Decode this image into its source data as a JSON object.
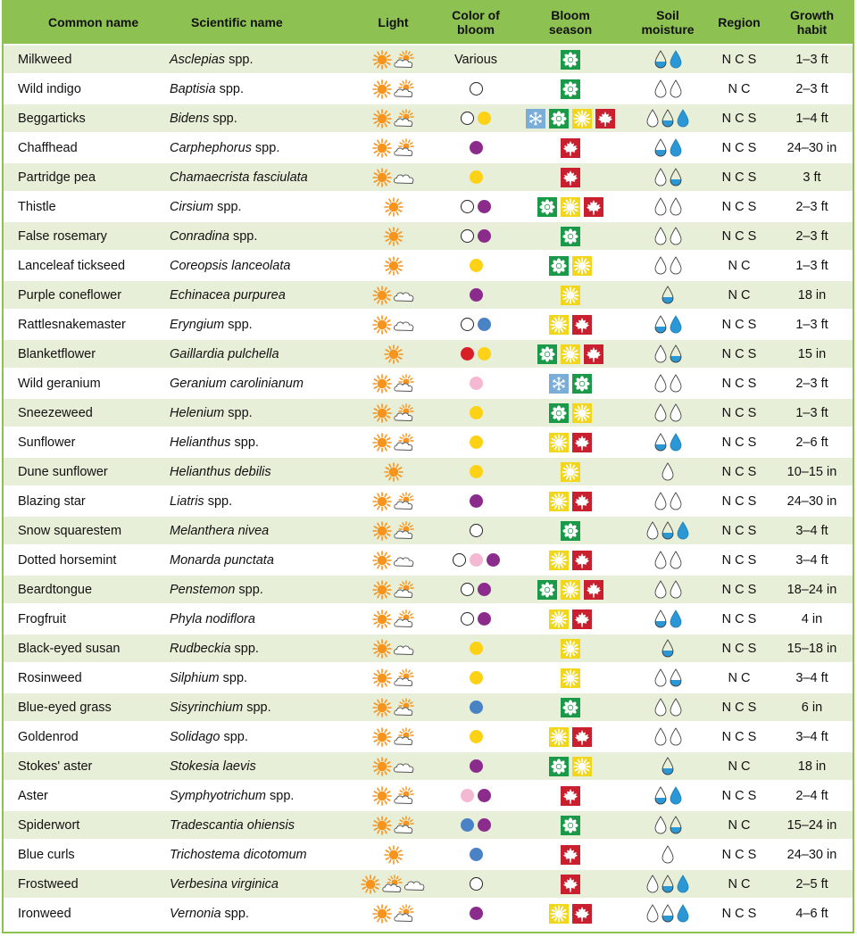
{
  "header": {
    "common": "Common name",
    "sci": "Scientific name",
    "light": "Light",
    "color": [
      "Color of",
      "bloom"
    ],
    "season": [
      "Bloom",
      "season"
    ],
    "moisture": [
      "Soil",
      "moisture"
    ],
    "region": "Region",
    "growth": [
      "Growth",
      "habit"
    ]
  },
  "colors": {
    "header_bg": "#8dc152",
    "alt_row": "#e7efd8",
    "sun": "#f7941d",
    "spring": "#1a9a48",
    "summer": "#f2d61c",
    "fall": "#c8202f",
    "winter": "#7aaed8",
    "purple": "#8b2b8c",
    "yellow": "#fcd116",
    "blue": "#4a82c6",
    "pink": "#f4b8d2",
    "red": "#d81f26",
    "water": "#2b97d4"
  },
  "rows": [
    {
      "common": "Milkweed",
      "sci": "Asclepias",
      "spp": " spp.",
      "light": "sun-partshade",
      "bloom": [
        "Various"
      ],
      "season": [
        "spring"
      ],
      "moisture": [
        1,
        2
      ],
      "region": "N C S",
      "growth": "1–3 ft"
    },
    {
      "common": "Wild indigo",
      "sci": "Baptisia",
      "spp": " spp.",
      "light": "sun-partshade",
      "bloom": [
        "white"
      ],
      "season": [
        "spring"
      ],
      "moisture": [
        0,
        0
      ],
      "region": "N C",
      "growth": "2–3 ft"
    },
    {
      "common": "Beggarticks",
      "sci": "Bidens",
      "spp": " spp.",
      "light": "sun-partshade",
      "bloom": [
        "white",
        "yellow"
      ],
      "season": [
        "winter",
        "spring",
        "summer",
        "fall"
      ],
      "moisture": [
        0,
        1,
        2
      ],
      "region": "N C S",
      "growth": "1–4 ft"
    },
    {
      "common": "Chaffhead",
      "sci": "Carphephorus",
      "spp": " spp.",
      "light": "sun-partshade",
      "bloom": [
        "purple"
      ],
      "season": [
        "fall"
      ],
      "moisture": [
        1,
        2
      ],
      "region": "N C S",
      "growth": "24–30 in"
    },
    {
      "common": "Partridge pea",
      "sci": "Chamaecrista fasciulata",
      "spp": "",
      "light": "sun-shade",
      "bloom": [
        "yellow"
      ],
      "season": [
        "fall"
      ],
      "moisture": [
        0,
        1
      ],
      "region": "N C S",
      "growth": "3 ft"
    },
    {
      "common": "Thistle",
      "sci": "Cirsium",
      "spp": " spp.",
      "light": "sun",
      "bloom": [
        "white",
        "purple"
      ],
      "season": [
        "spring",
        "summer",
        "fall"
      ],
      "moisture": [
        0,
        0
      ],
      "region": "N C S",
      "growth": "2–3 ft"
    },
    {
      "common": "False rosemary",
      "sci": "Conradina",
      "spp": " spp.",
      "light": "sun",
      "bloom": [
        "white",
        "purple"
      ],
      "season": [
        "spring"
      ],
      "moisture": [
        0,
        0
      ],
      "region": "N C S",
      "growth": "2–3 ft"
    },
    {
      "common": "Lanceleaf tickseed",
      "sci": "Coreopsis lanceolata",
      "spp": "",
      "light": "sun",
      "bloom": [
        "yellow"
      ],
      "season": [
        "spring",
        "summer"
      ],
      "moisture": [
        0,
        0
      ],
      "region": "N C",
      "growth": "1–3 ft"
    },
    {
      "common": "Purple coneflower",
      "sci": "Echinacea purpurea",
      "spp": "",
      "light": "sun-shade",
      "bloom": [
        "purple"
      ],
      "season": [
        "summer"
      ],
      "moisture": [
        1
      ],
      "region": "N C",
      "growth": "18 in"
    },
    {
      "common": "Rattlesnakemaster",
      "sci": "Eryngium",
      "spp": " spp.",
      "light": "sun-shade",
      "bloom": [
        "white",
        "blue"
      ],
      "season": [
        "summer",
        "fall"
      ],
      "moisture": [
        1,
        2
      ],
      "region": "N C S",
      "growth": "1–3 ft"
    },
    {
      "common": "Blanketflower",
      "sci": "Gaillardia pulchella",
      "spp": "",
      "light": "sun",
      "bloom": [
        "red",
        "yellow"
      ],
      "season": [
        "spring",
        "summer",
        "fall"
      ],
      "moisture": [
        0,
        1
      ],
      "region": "N C S",
      "growth": "15 in"
    },
    {
      "common": "Wild geranium",
      "sci": "Geranium carolinianum",
      "spp": "",
      "light": "sun-partshade",
      "bloom": [
        "pink"
      ],
      "season": [
        "winter",
        "spring"
      ],
      "moisture": [
        0,
        0
      ],
      "region": "N C S",
      "growth": "2–3 ft"
    },
    {
      "common": "Sneezeweed",
      "sci": "Helenium",
      "spp": " spp.",
      "light": "sun-partshade",
      "bloom": [
        "yellow"
      ],
      "season": [
        "spring",
        "summer"
      ],
      "moisture": [
        0,
        0
      ],
      "region": "N C S",
      "growth": "1–3 ft"
    },
    {
      "common": "Sunflower",
      "sci": "Helianthus",
      "spp": " spp.",
      "light": "sun-partshade",
      "bloom": [
        "yellow"
      ],
      "season": [
        "summer",
        "fall"
      ],
      "moisture": [
        1,
        2
      ],
      "region": "N C S",
      "growth": "2–6 ft"
    },
    {
      "common": "Dune sunflower",
      "sci": "Helianthus debilis",
      "spp": "",
      "light": "sun",
      "bloom": [
        "yellow"
      ],
      "season": [
        "summer"
      ],
      "moisture": [
        0
      ],
      "region": "N C S",
      "growth": "10–15 in"
    },
    {
      "common": "Blazing star",
      "sci": "Liatris",
      "spp": " spp.",
      "light": "sun-partshade",
      "bloom": [
        "purple"
      ],
      "season": [
        "summer",
        "fall"
      ],
      "moisture": [
        0,
        0
      ],
      "region": "N C S",
      "growth": "24–30 in"
    },
    {
      "common": "Snow squarestem",
      "sci": "Melanthera nivea",
      "spp": "",
      "light": "sun-partshade",
      "bloom": [
        "white"
      ],
      "season": [
        "spring"
      ],
      "moisture": [
        0,
        1,
        2
      ],
      "region": "N C S",
      "growth": "3–4 ft"
    },
    {
      "common": "Dotted horsemint",
      "sci": "Monarda punctata",
      "spp": "",
      "light": "sun-shade",
      "bloom": [
        "white",
        "pink",
        "purple"
      ],
      "season": [
        "summer",
        "fall"
      ],
      "moisture": [
        0,
        0
      ],
      "region": "N C S",
      "growth": "3–4 ft"
    },
    {
      "common": "Beardtongue",
      "sci": "Penstemon",
      "spp": " spp.",
      "light": "sun-partshade",
      "bloom": [
        "white",
        "purple"
      ],
      "season": [
        "spring",
        "summer",
        "fall"
      ],
      "moisture": [
        0,
        0
      ],
      "region": "N C S",
      "growth": "18–24 in"
    },
    {
      "common": "Frogfruit",
      "sci": "Phyla nodiflora",
      "spp": "",
      "light": "sun-partshade",
      "bloom": [
        "white",
        "purple"
      ],
      "season": [
        "summer",
        "fall"
      ],
      "moisture": [
        1,
        2
      ],
      "region": "N C S",
      "growth": "4 in"
    },
    {
      "common": "Black-eyed susan",
      "sci": "Rudbeckia",
      "spp": " spp.",
      "light": "sun-shade",
      "bloom": [
        "yellow"
      ],
      "season": [
        "summer"
      ],
      "moisture": [
        1
      ],
      "region": "N C S",
      "growth": "15–18 in"
    },
    {
      "common": "Rosinweed",
      "sci": "Silphium",
      "spp": " spp.",
      "light": "sun-partshade",
      "bloom": [
        "yellow"
      ],
      "season": [
        "summer"
      ],
      "moisture": [
        0,
        1
      ],
      "region": "N C",
      "growth": "3–4 ft"
    },
    {
      "common": "Blue-eyed grass",
      "sci": "Sisyrinchium",
      "spp": " spp.",
      "light": "sun-partshade",
      "bloom": [
        "blue"
      ],
      "season": [
        "spring"
      ],
      "moisture": [
        0,
        0
      ],
      "region": "N C S",
      "growth": "6 in"
    },
    {
      "common": "Goldenrod",
      "sci": "Solidago",
      "spp": " spp.",
      "light": "sun-partshade",
      "bloom": [
        "yellow"
      ],
      "season": [
        "summer",
        "fall"
      ],
      "moisture": [
        0,
        0
      ],
      "region": "N C S",
      "growth": "3–4 ft"
    },
    {
      "common": "Stokes' aster",
      "sci": "Stokesia laevis",
      "spp": "",
      "light": "sun-shade",
      "bloom": [
        "purple"
      ],
      "season": [
        "spring",
        "summer"
      ],
      "moisture": [
        1
      ],
      "region": "N C",
      "growth": "18 in"
    },
    {
      "common": "Aster",
      "sci": "Symphyotrichum",
      "spp": " spp.",
      "light": "sun-partshade",
      "bloom": [
        "pink",
        "purple"
      ],
      "season": [
        "fall"
      ],
      "moisture": [
        1,
        2
      ],
      "region": "N C S",
      "growth": "2–4 ft"
    },
    {
      "common": "Spiderwort",
      "sci": "Tradescantia ohiensis",
      "spp": "",
      "light": "sun-partshade",
      "bloom": [
        "blue",
        "purple"
      ],
      "season": [
        "spring"
      ],
      "moisture": [
        0,
        1
      ],
      "region": "N C",
      "growth": "15–24 in"
    },
    {
      "common": "Blue curls",
      "sci": "Trichostema dicotomum",
      "spp": "",
      "light": "sun",
      "bloom": [
        "blue"
      ],
      "season": [
        "fall"
      ],
      "moisture": [
        0
      ],
      "region": "N C S",
      "growth": "24–30 in"
    },
    {
      "common": "Frostweed",
      "sci": "Verbesina virginica",
      "spp": "",
      "light": "sun-partshade-shade",
      "bloom": [
        "white"
      ],
      "season": [
        "fall"
      ],
      "moisture": [
        0,
        1,
        2
      ],
      "region": "N C",
      "growth": "2–5 ft"
    },
    {
      "common": "Ironweed",
      "sci": "Vernonia",
      "spp": " spp.",
      "light": "sun-partshade",
      "bloom": [
        "purple"
      ],
      "season": [
        "summer",
        "fall"
      ],
      "moisture": [
        0,
        1,
        2
      ],
      "region": "N C S",
      "growth": "4–6 ft"
    }
  ]
}
